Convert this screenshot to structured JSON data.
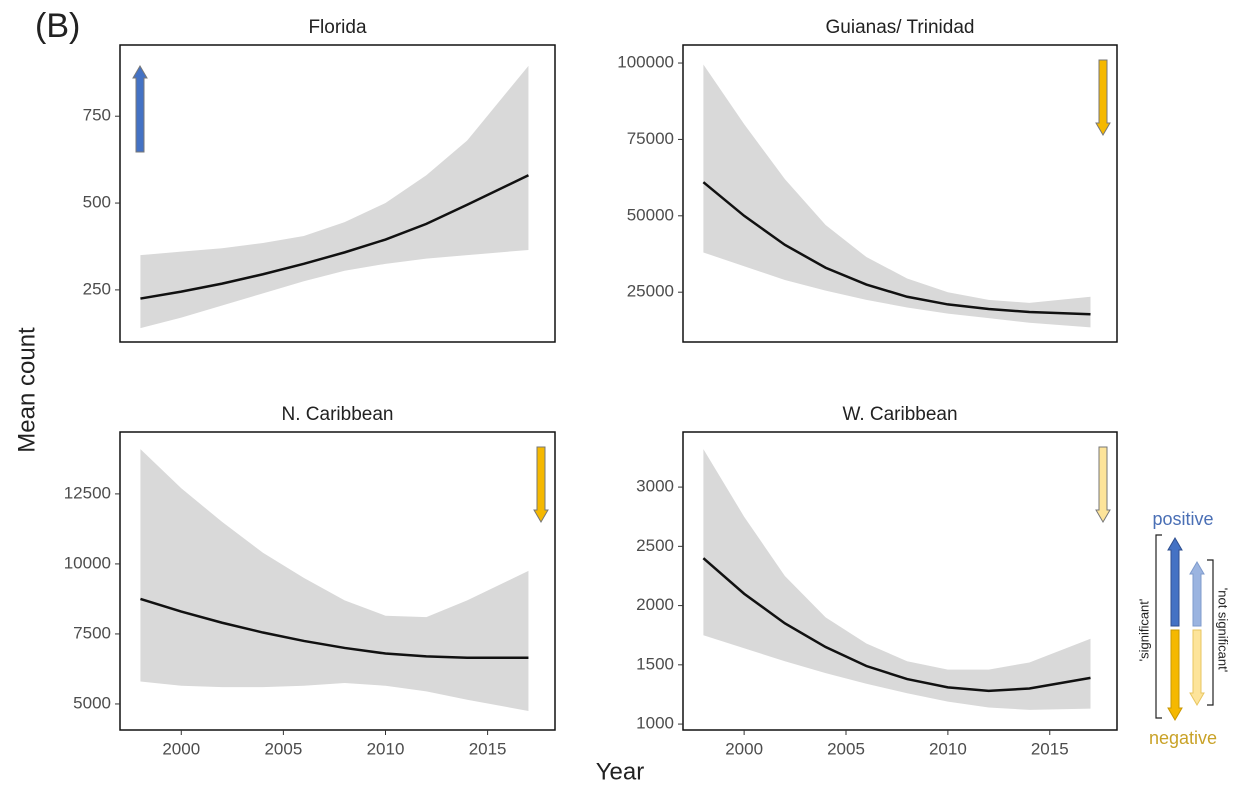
{
  "panel_label": "(B)",
  "y_label": "Mean count",
  "x_label": "Year",
  "legend": {
    "positive": "positive",
    "negative": "negative",
    "significant": "'significant'",
    "not_significant": "'not significant'"
  },
  "chart_data": [
    {
      "type": "line",
      "title": "Florida",
      "x": [
        1998,
        2000,
        2002,
        2004,
        2006,
        2008,
        2010,
        2012,
        2014,
        2017
      ],
      "values": [
        225,
        245,
        268,
        295,
        325,
        358,
        395,
        440,
        495,
        580
      ],
      "lower": [
        140,
        170,
        205,
        240,
        275,
        305,
        325,
        340,
        350,
        365
      ],
      "upper": [
        350,
        360,
        370,
        385,
        405,
        445,
        500,
        580,
        680,
        895
      ],
      "color": "#111111",
      "band_color": "#d9d9d9",
      "xlim": [
        1997,
        2018.3
      ],
      "ylim": [
        100,
        955
      ],
      "yticks": [
        250,
        500,
        750
      ],
      "trend_arrow": {
        "direction": "up",
        "color": "#4472c4"
      }
    },
    {
      "type": "line",
      "title": "Guianas/ Trinidad",
      "x": [
        1998,
        2000,
        2002,
        2004,
        2006,
        2008,
        2010,
        2012,
        2014,
        2017
      ],
      "values": [
        61000,
        50000,
        40500,
        33000,
        27500,
        23500,
        21000,
        19500,
        18500,
        17800
      ],
      "lower": [
        38000,
        33500,
        29000,
        25500,
        22500,
        20000,
        18000,
        16500,
        15000,
        13500
      ],
      "upper": [
        99500,
        80000,
        62000,
        47000,
        36500,
        29500,
        25000,
        22500,
        21500,
        23500
      ],
      "color": "#111111",
      "band_color": "#d9d9d9",
      "xlim": [
        1997,
        2018.3
      ],
      "ylim": [
        8700,
        105900
      ],
      "yticks": [
        25000,
        50000,
        75000,
        100000
      ],
      "trend_arrow": {
        "direction": "down",
        "color": "#f5b800"
      }
    },
    {
      "type": "line",
      "title": "N. Caribbean",
      "x": [
        1998,
        2000,
        2002,
        2004,
        2006,
        2008,
        2010,
        2012,
        2014,
        2017
      ],
      "values": [
        8750,
        8300,
        7900,
        7550,
        7250,
        7000,
        6800,
        6700,
        6650,
        6650
      ],
      "lower": [
        5800,
        5650,
        5600,
        5600,
        5650,
        5750,
        5650,
        5450,
        5150,
        4750
      ],
      "upper": [
        14100,
        12700,
        11500,
        10400,
        9500,
        8700,
        8150,
        8100,
        8700,
        9750
      ],
      "color": "#111111",
      "band_color": "#d9d9d9",
      "xlim": [
        1997,
        2018.3
      ],
      "ylim": [
        4070,
        14710
      ],
      "yticks": [
        5000,
        7500,
        10000,
        12500
      ],
      "xticks": [
        2000,
        2005,
        2010,
        2015
      ],
      "trend_arrow": {
        "direction": "down",
        "color": "#f5b800"
      }
    },
    {
      "type": "line",
      "title": "W. Caribbean",
      "x": [
        1998,
        2000,
        2002,
        2004,
        2006,
        2008,
        2010,
        2012,
        2014,
        2017
      ],
      "values": [
        2400,
        2100,
        1850,
        1650,
        1490,
        1380,
        1310,
        1280,
        1300,
        1390
      ],
      "lower": [
        1750,
        1640,
        1530,
        1430,
        1340,
        1260,
        1190,
        1140,
        1120,
        1130
      ],
      "upper": [
        3320,
        2750,
        2250,
        1900,
        1680,
        1530,
        1460,
        1460,
        1520,
        1720
      ],
      "color": "#111111",
      "band_color": "#d9d9d9",
      "xlim": [
        1997,
        2018.3
      ],
      "ylim": [
        950,
        3465
      ],
      "yticks": [
        1000,
        1500,
        2000,
        2500,
        3000
      ],
      "xticks": [
        2000,
        2005,
        2010,
        2015
      ],
      "trend_arrow": {
        "direction": "down",
        "color": "#fde49a"
      }
    }
  ]
}
